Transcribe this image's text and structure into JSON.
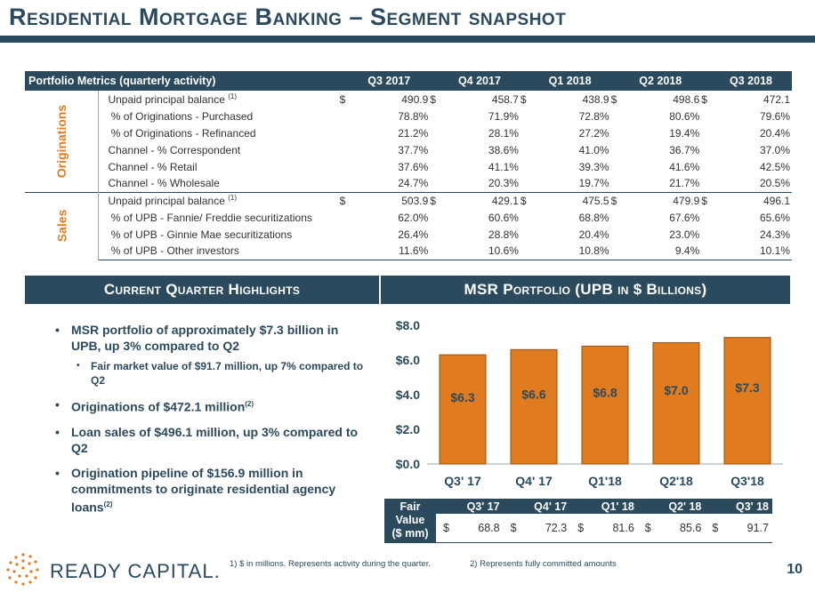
{
  "title": "Residential Mortgage Banking – Segment snapshot",
  "portfolio": {
    "header": "Portfolio Metrics (quarterly activity)",
    "quarters": [
      "Q3 2017",
      "Q4 2017",
      "Q1 2018",
      "Q2 2018",
      "Q3 2018"
    ],
    "groups": [
      {
        "name": "Originations",
        "rows": [
          {
            "label": "Unpaid principal balance",
            "sup": "(1)",
            "currency": "$",
            "values": [
              "490.9",
              "458.7",
              "438.9",
              "498.6",
              "472.1"
            ]
          },
          {
            "label": " % of Originations - Purchased",
            "values": [
              "78.8%",
              "71.9%",
              "72.8%",
              "80.6%",
              "79.6%"
            ]
          },
          {
            "label": " % of Originations - Refinanced",
            "values": [
              "21.2%",
              "28.1%",
              "27.2%",
              "19.4%",
              "20.4%"
            ]
          },
          {
            "label": "Channel - % Correspondent",
            "values": [
              "37.7%",
              "38.6%",
              "41.0%",
              "36.7%",
              "37.0%"
            ]
          },
          {
            "label": "Channel - % Retail",
            "values": [
              "37.6%",
              "41.1%",
              "39.3%",
              "41.6%",
              "42.5%"
            ]
          },
          {
            "label": "Channel - % Wholesale",
            "values": [
              "24.7%",
              "20.3%",
              "19.7%",
              "21.7%",
              "20.5%"
            ]
          }
        ]
      },
      {
        "name": "Sales",
        "rows": [
          {
            "label": "Unpaid principal balance",
            "sup": "(1)",
            "currency": "$",
            "values": [
              "503.9",
              "429.1",
              "475.5",
              "479.9",
              "496.1"
            ]
          },
          {
            "label": " % of UPB - Fannie/ Freddie securitizations",
            "values": [
              "62.0%",
              "60.6%",
              "68.8%",
              "67.6%",
              "65.6%"
            ]
          },
          {
            "label": " % of UPB - Ginnie Mae securitizations",
            "values": [
              "26.4%",
              "28.8%",
              "20.4%",
              "23.0%",
              "24.3%"
            ]
          },
          {
            "label": " % of UPB - Other investors",
            "values": [
              "11.6%",
              "10.6%",
              "10.8%",
              "9.4%",
              "10.1%"
            ]
          }
        ]
      }
    ]
  },
  "highlights": {
    "header": "Current Quarter Highlights",
    "b1": "MSR portfolio of approximately $7.3 billion in UPB, up 3% compared to Q2",
    "b1_sub": "Fair market value of $91.7 million, up 7% compared to Q2",
    "b2": "Originations of $472.1 million",
    "b2_sup": "(2)",
    "b3": "Loan sales of $496.1 million, up 3% compared to Q2",
    "b4": "Origination pipeline of $156.9 million in commitments to originate residential agency loans",
    "b4_sup": "(2)"
  },
  "msr_header": "MSR Portfolio (UPB in $ Billions)",
  "chart_data": {
    "type": "bar",
    "title": "MSR Portfolio (UPB in $ Billions)",
    "categories": [
      "Q3' 17",
      "Q4' 17",
      "Q1'18",
      "Q2'18",
      "Q3'18"
    ],
    "values": [
      6.3,
      6.6,
      6.8,
      7.0,
      7.3
    ],
    "data_labels": [
      "$6.3",
      "$6.6",
      "$6.8",
      "$7.0",
      "$7.3"
    ],
    "ylim": [
      0,
      8
    ],
    "yticks": [
      "$0.0",
      "$2.0",
      "$4.0",
      "$6.0",
      "$8.0"
    ],
    "ytick_values": [
      0,
      2,
      4,
      6,
      8
    ],
    "colors": {
      "bar": "#e07b1f",
      "bar_edge": "#9a4e0c",
      "label": "#2b4a5e"
    }
  },
  "fair_value": {
    "label_line1": "Fair",
    "label_line2": "Value",
    "label_line3": "($ mm)",
    "quarters": [
      "Q3' 17",
      "Q4' 17",
      "Q1' 18",
      "Q2' 18",
      "Q3' 18"
    ],
    "currency": "$",
    "values": [
      "68.8",
      "72.3",
      "81.6",
      "85.6",
      "91.7"
    ]
  },
  "logo_text": "READY CAPITAL.",
  "footnote1": "1)   $ in millions. Represents activity during the quarter.",
  "footnote2": "2)   Represents fully committed amounts",
  "page_number": "10",
  "colors": {
    "navy": "#2b4a5e",
    "orange": "#e07b1f"
  }
}
